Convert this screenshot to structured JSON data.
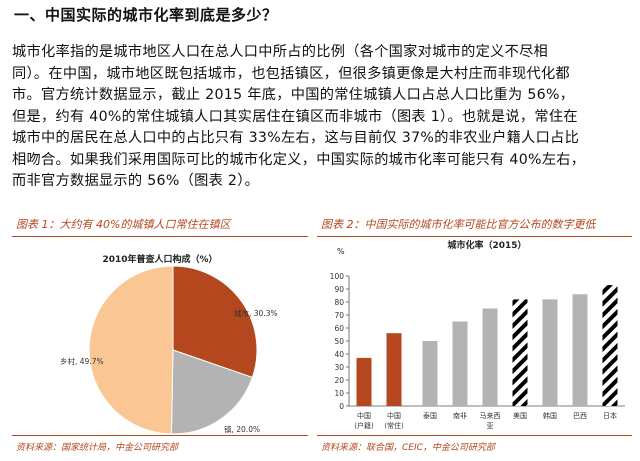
{
  "section": {
    "title": "一、中国实际的城市化率到底是多少？"
  },
  "paragraph": {
    "lines": [
      "城市化率指的是城市地区人口在总人口中所占的比例（各个国家对城市的定义不尽相",
      "同）。在中国，城市地区既包括城市，也包括镇区，但很多镇更像是大村庄而非现代化都",
      "市。官方统计数据显示，截止 2015 年底，中国的常住城镇人口占总人口比重为 56%，",
      "但是，约有 40%的常住城镇人口其实居住在镇区而非城市（图表 1）。也就是说，常住在",
      "城市中的居民在总人口中的占比只有 33%左右，这与目前仅 37%的非农业户籍人口占比",
      "相吻合。如果我们采用国际可比的城市化定义，中国实际的城市化率可能只有 40%左右，",
      "而非官方数据显示的 56%（图表 2）。"
    ]
  },
  "figure1": {
    "heading": "图表 1：大约有 40%的城镇人口常住在镇区",
    "source": "资料来源：国家统计局，中金公司研究部"
  },
  "figure2": {
    "heading": "图表 2：中国实际的城市化率可能比官方公布的数字更低",
    "source": "资料来源：联合国，CEIC，中金公司研究部"
  },
  "chart_data": [
    {
      "type": "pie",
      "title": "2010年普查人口构成（%）",
      "slices": [
        {
          "label": "城市, 30.3%",
          "value": 30.3,
          "color": "#b5471e"
        },
        {
          "label": "镇, 20.0%",
          "value": 20.0,
          "color": "#b3b3b3"
        },
        {
          "label": "乡村, 49.7%",
          "value": 49.7,
          "color": "#f9c694"
        }
      ]
    },
    {
      "type": "bar",
      "title": "城市化率（2015）",
      "ylabel": "%",
      "ylim": [
        0,
        100
      ],
      "yticks": [
        0,
        10,
        20,
        30,
        40,
        50,
        60,
        70,
        80,
        90,
        100
      ],
      "bars": [
        {
          "label": "中国(户籍)",
          "value": 37,
          "style": "china"
        },
        {
          "label": "中国(常住)",
          "value": 56,
          "style": "china"
        },
        {
          "label": "泰国",
          "value": 50,
          "style": "grey"
        },
        {
          "label": "南非",
          "value": 65,
          "style": "grey"
        },
        {
          "label": "马来西亚",
          "value": 75,
          "style": "grey"
        },
        {
          "label": "美国",
          "value": 82,
          "style": "hatch"
        },
        {
          "label": "韩国",
          "value": 82,
          "style": "grey"
        },
        {
          "label": "巴西",
          "value": 86,
          "style": "grey"
        },
        {
          "label": "日本",
          "value": 93,
          "style": "hatch"
        }
      ],
      "colors": {
        "china": "#b5471e",
        "grey": "#b3b3b3",
        "hatch": "#000000"
      }
    }
  ]
}
